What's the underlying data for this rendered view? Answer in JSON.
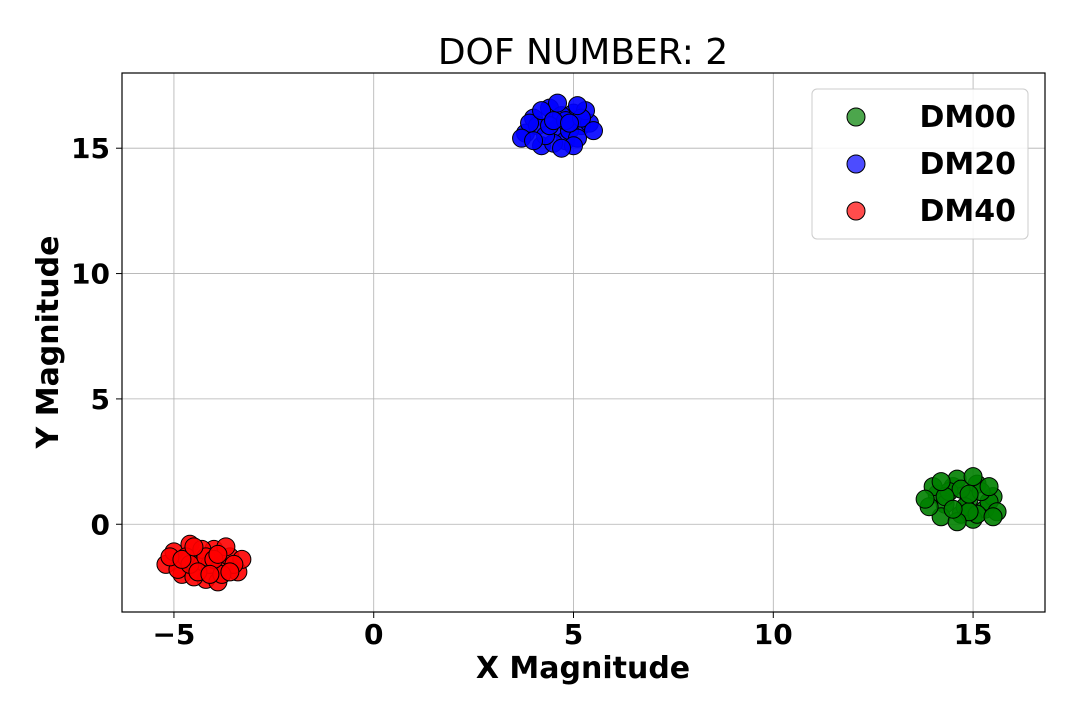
{
  "chart_data": {
    "type": "scatter",
    "title": "DOF NUMBER: 2",
    "xlabel": "X Magnitude",
    "ylabel": "Y Magnitude",
    "xlim": [
      -6.3,
      16.8
    ],
    "ylim": [
      -3.5,
      18.0
    ],
    "xticks": [
      -5,
      0,
      5,
      10,
      15
    ],
    "xtick_labels": [
      "−5",
      "0",
      "5",
      "10",
      "15"
    ],
    "yticks": [
      0,
      5,
      10,
      15
    ],
    "ytick_labels": [
      "0",
      "5",
      "10",
      "15"
    ],
    "grid": true,
    "legend_position": "top-right",
    "series": [
      {
        "name": "DM00",
        "color": "#008000",
        "points": [
          [
            14.1,
            1.2
          ],
          [
            14.3,
            0.8
          ],
          [
            14.5,
            1.5
          ],
          [
            14.7,
            0.4
          ],
          [
            14.9,
            1.0
          ],
          [
            15.1,
            1.6
          ],
          [
            15.3,
            0.6
          ],
          [
            15.5,
            1.1
          ],
          [
            14.2,
            0.3
          ],
          [
            14.6,
            1.8
          ],
          [
            15.0,
            0.2
          ],
          [
            15.4,
            0.9
          ],
          [
            13.9,
            0.7
          ],
          [
            14.4,
            1.3
          ],
          [
            14.8,
            0.7
          ],
          [
            15.2,
            1.3
          ],
          [
            15.6,
            0.5
          ],
          [
            14.0,
            1.5
          ],
          [
            14.7,
            1.4
          ],
          [
            15.1,
            0.4
          ],
          [
            14.3,
            1.1
          ],
          [
            14.9,
            0.5
          ],
          [
            15.4,
            1.5
          ],
          [
            13.8,
            1.0
          ],
          [
            14.6,
            0.1
          ],
          [
            15.0,
            1.9
          ],
          [
            14.2,
            1.7
          ],
          [
            15.5,
            0.3
          ],
          [
            14.5,
            0.6
          ],
          [
            14.9,
            1.2
          ]
        ]
      },
      {
        "name": "DM20",
        "color": "#0000ff",
        "points": [
          [
            3.8,
            15.6
          ],
          [
            4.0,
            16.2
          ],
          [
            4.2,
            15.1
          ],
          [
            4.4,
            16.6
          ],
          [
            4.6,
            15.8
          ],
          [
            4.8,
            15.3
          ],
          [
            5.0,
            16.4
          ],
          [
            5.2,
            15.9
          ],
          [
            5.4,
            16.0
          ],
          [
            4.1,
            15.9
          ],
          [
            4.5,
            15.2
          ],
          [
            4.7,
            16.3
          ],
          [
            4.9,
            15.7
          ],
          [
            5.1,
            15.4
          ],
          [
            5.3,
            16.5
          ],
          [
            3.9,
            16.0
          ],
          [
            4.3,
            15.5
          ],
          [
            4.6,
            16.8
          ],
          [
            5.0,
            15.1
          ],
          [
            4.4,
            15.9
          ],
          [
            4.8,
            16.1
          ],
          [
            5.2,
            16.2
          ],
          [
            3.7,
            15.4
          ],
          [
            4.2,
            16.5
          ],
          [
            5.5,
            15.7
          ],
          [
            4.0,
            15.3
          ],
          [
            4.7,
            15.0
          ],
          [
            5.1,
            16.7
          ],
          [
            4.5,
            16.1
          ],
          [
            4.9,
            16.0
          ]
        ]
      },
      {
        "name": "DM40",
        "color": "#ff0000",
        "points": [
          [
            -5.2,
            -1.6
          ],
          [
            -5.0,
            -1.1
          ],
          [
            -4.8,
            -2.0
          ],
          [
            -4.6,
            -0.8
          ],
          [
            -4.4,
            -1.5
          ],
          [
            -4.2,
            -2.2
          ],
          [
            -4.0,
            -1.0
          ],
          [
            -3.8,
            -1.7
          ],
          [
            -3.6,
            -1.3
          ],
          [
            -3.4,
            -1.9
          ],
          [
            -3.3,
            -1.4
          ],
          [
            -4.9,
            -1.8
          ],
          [
            -4.7,
            -1.3
          ],
          [
            -4.5,
            -2.1
          ],
          [
            -4.3,
            -1.0
          ],
          [
            -4.1,
            -1.6
          ],
          [
            -3.9,
            -2.3
          ],
          [
            -3.7,
            -0.9
          ],
          [
            -3.5,
            -1.6
          ],
          [
            -5.1,
            -1.3
          ],
          [
            -4.6,
            -1.6
          ],
          [
            -4.2,
            -1.3
          ],
          [
            -3.8,
            -2.0
          ],
          [
            -4.4,
            -1.9
          ],
          [
            -4.0,
            -1.4
          ],
          [
            -3.6,
            -1.9
          ],
          [
            -4.8,
            -1.4
          ],
          [
            -4.5,
            -0.9
          ],
          [
            -4.1,
            -2.0
          ],
          [
            -3.9,
            -1.2
          ]
        ]
      }
    ]
  }
}
